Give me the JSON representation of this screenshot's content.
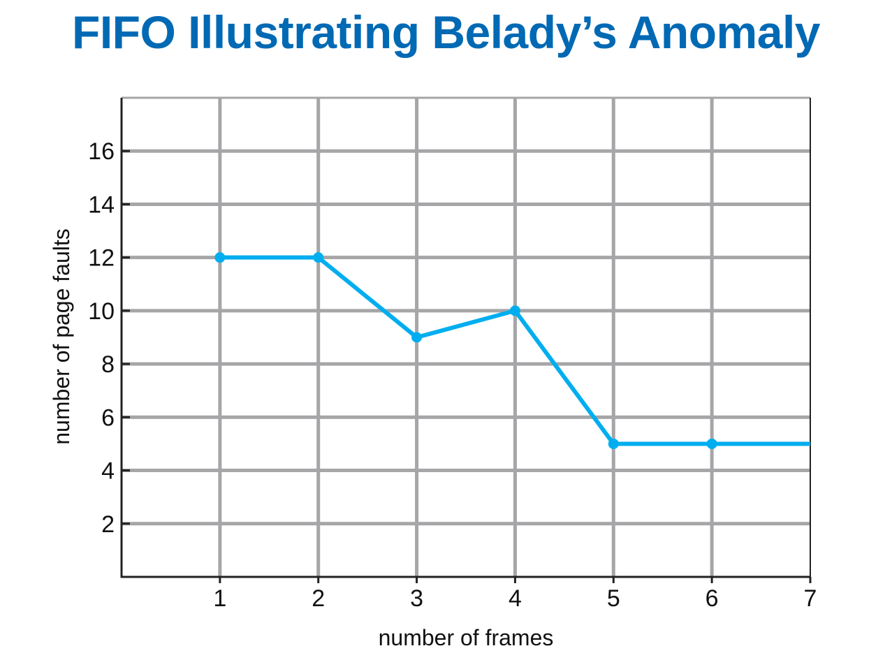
{
  "colors": {
    "title": "#0069b4",
    "grid": "#a6a6a8",
    "axis": "#222222",
    "series": "#00aeef"
  },
  "chart_data": {
    "type": "line",
    "title": "FIFO Illustrating Belady’s Anomaly",
    "xlabel": "number of frames",
    "ylabel": "number of page faults",
    "xlim": [
      0,
      7
    ],
    "ylim": [
      0,
      18
    ],
    "xticks": [
      1,
      2,
      3,
      4,
      5,
      6,
      7
    ],
    "yticks": [
      2,
      4,
      6,
      8,
      10,
      12,
      14,
      16
    ],
    "grid": true,
    "series": [
      {
        "x": [
          1,
          2,
          3,
          4,
          5,
          6
        ],
        "y": [
          12,
          12,
          9,
          10,
          5,
          5
        ],
        "extends_to_x": 7
      }
    ]
  }
}
